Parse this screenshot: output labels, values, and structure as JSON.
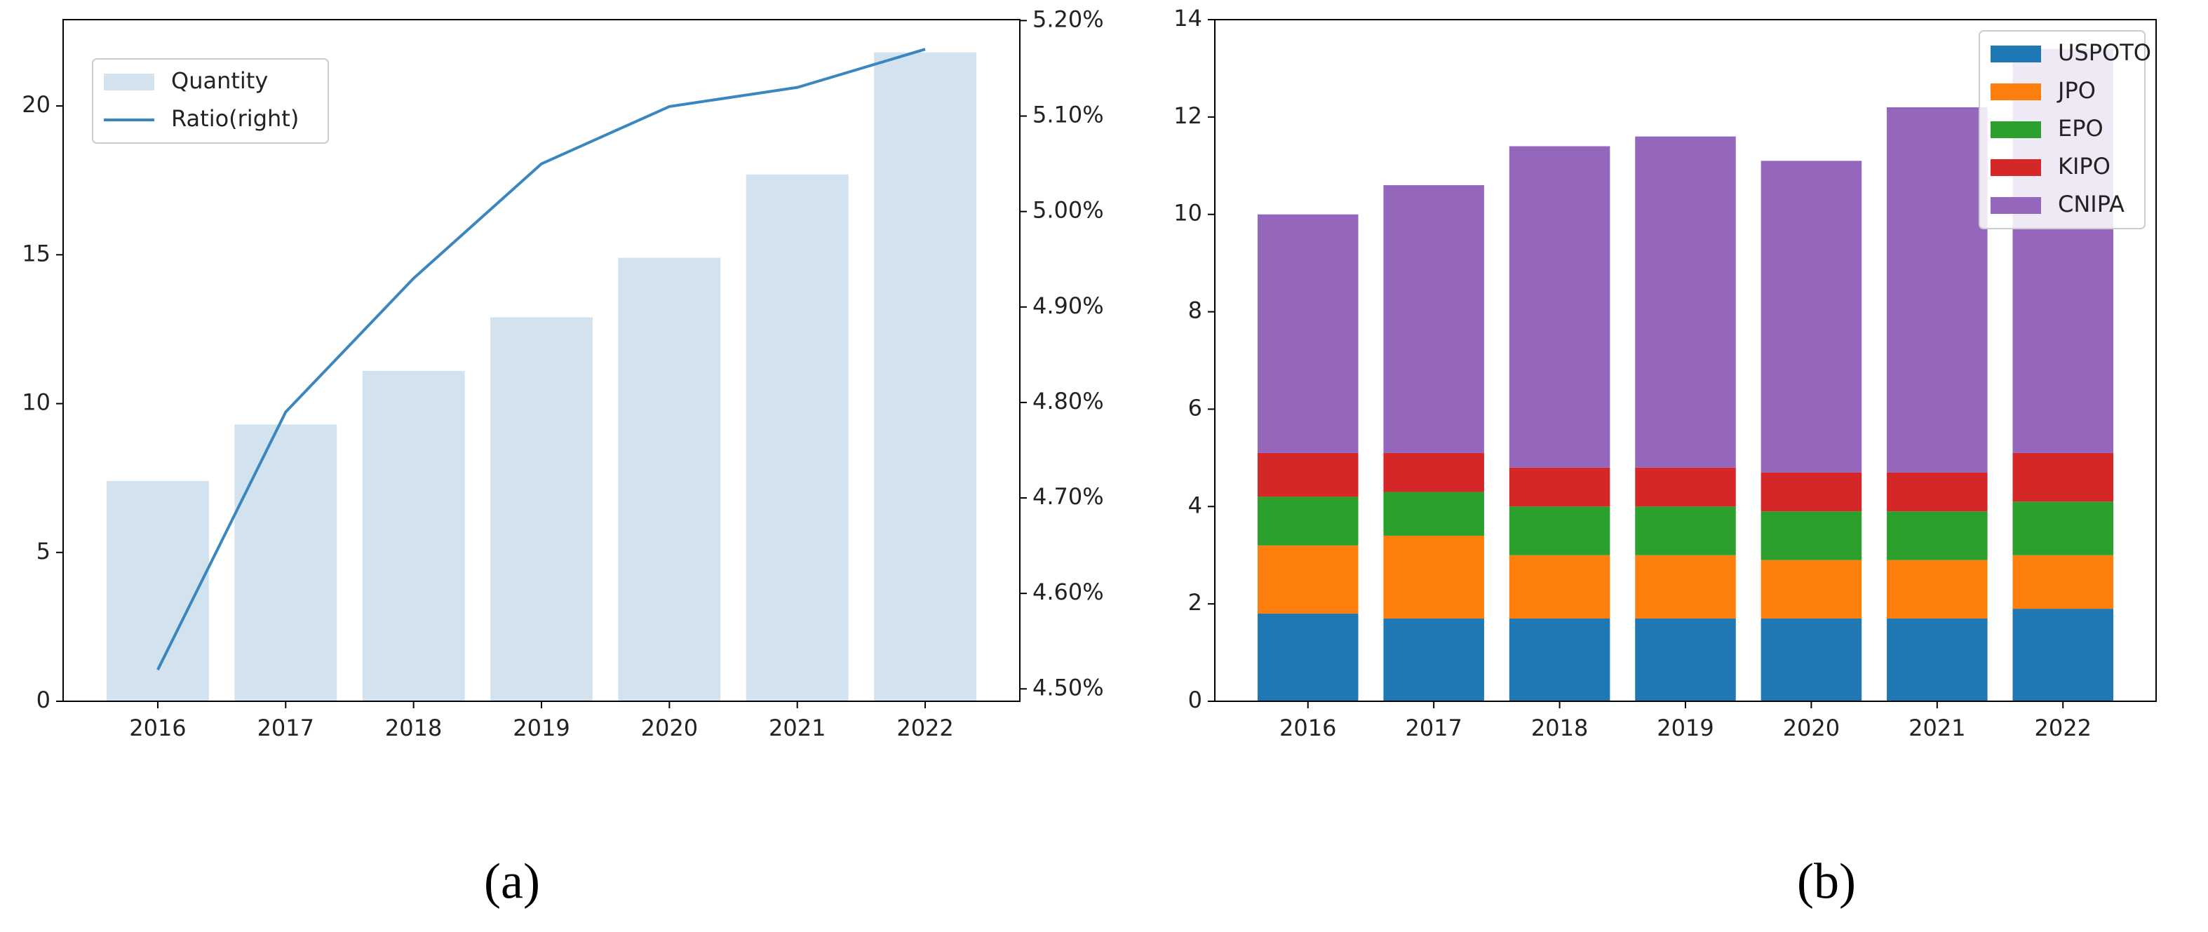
{
  "chart_data": [
    {
      "type": "bar",
      "caption": "(a)",
      "categories": [
        "2016",
        "2017",
        "2018",
        "2019",
        "2020",
        "2021",
        "2022"
      ],
      "series": [
        {
          "name": "Quantity",
          "type": "bar",
          "color": "#d3e2ef",
          "values": [
            7.4,
            9.3,
            11.1,
            12.9,
            14.9,
            17.7,
            21.8
          ]
        },
        {
          "name": "Ratio(right)",
          "type": "line",
          "axis": "y2",
          "color": "#3a87c0",
          "values": [
            4.52,
            4.79,
            4.93,
            5.05,
            5.11,
            5.13,
            5.17
          ]
        }
      ],
      "ylim": [
        0,
        22.9
      ],
      "yticks": [
        0,
        5,
        10,
        15,
        20
      ],
      "y2lim": [
        4.487,
        5.201
      ],
      "y2ticks": [
        {
          "value": 4.5,
          "label": "4.50%"
        },
        {
          "value": 4.6,
          "label": "4.60%"
        },
        {
          "value": 4.7,
          "label": "4.70%"
        },
        {
          "value": 4.8,
          "label": "4.80%"
        },
        {
          "value": 4.9,
          "label": "4.90%"
        },
        {
          "value": 5.0,
          "label": "5.00%"
        },
        {
          "value": 5.1,
          "label": "5.10%"
        },
        {
          "value": 5.2,
          "label": "5.20%"
        }
      ],
      "legend": "upper left"
    },
    {
      "type": "bar",
      "stacked": true,
      "caption": "(b)",
      "categories": [
        "2016",
        "2017",
        "2018",
        "2019",
        "2020",
        "2021",
        "2022"
      ],
      "series": [
        {
          "name": "USPOTO",
          "color": "#1f77b4",
          "values": [
            1.8,
            1.7,
            1.7,
            1.7,
            1.7,
            1.7,
            1.9
          ]
        },
        {
          "name": "JPO",
          "color": "#ff7f0e",
          "values": [
            1.4,
            1.7,
            1.3,
            1.3,
            1.2,
            1.2,
            1.1
          ]
        },
        {
          "name": "EPO",
          "color": "#2ca02c",
          "values": [
            1.0,
            0.9,
            1.0,
            1.0,
            1.0,
            1.0,
            1.1
          ]
        },
        {
          "name": "KIPO",
          "color": "#d62728",
          "values": [
            0.9,
            0.8,
            0.8,
            0.8,
            0.8,
            0.8,
            1.0
          ]
        },
        {
          "name": "CNIPA",
          "color": "#9467bd",
          "values": [
            4.9,
            5.5,
            6.6,
            6.8,
            6.4,
            7.5,
            8.3
          ]
        }
      ],
      "ylim": [
        0,
        14
      ],
      "yticks": [
        0,
        2,
        4,
        6,
        8,
        10,
        12,
        14
      ],
      "legend": "upper right"
    }
  ]
}
